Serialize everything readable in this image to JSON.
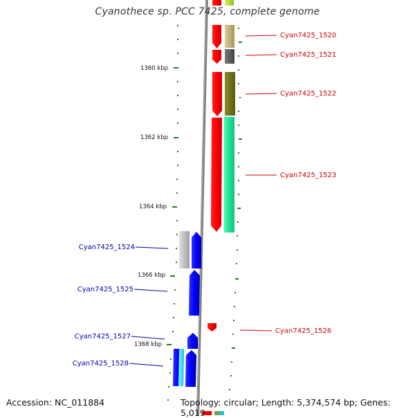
{
  "title": "Cyanothece sp. PCC 7425, complete genome",
  "accession_text": "Accession: NC_011884",
  "summary_text": "Topology: circular; Length: 5,374,574 bp; Genes: 5,019",
  "ticks": [
    {
      "label": "1360 kbp"
    },
    {
      "label": "1362 kbp"
    },
    {
      "label": "1364 kbp"
    },
    {
      "label": "1366 kbp"
    },
    {
      "label": "1368 kbp"
    }
  ],
  "genes_right": [
    {
      "label": "Cyan7425_1520"
    },
    {
      "label": "Cyan7425_1521"
    },
    {
      "label": "Cyan7425_1522"
    },
    {
      "label": "Cyan7425_1523"
    },
    {
      "label": "Cyan7425_1526"
    }
  ],
  "genes_left": [
    {
      "label": "Cyan7425_1524"
    },
    {
      "label": "Cyan7425_1525"
    },
    {
      "label": "Cyan7425_1527"
    },
    {
      "label": "Cyan7425_1528"
    }
  ],
  "colors": {
    "forward_strand": "#0000ff",
    "reverse_strand": "#ff0000",
    "right_label": "#cc0000",
    "left_label": "#0000aa",
    "tick": "#1e7a1e",
    "backbone": "#7f7f7f"
  }
}
